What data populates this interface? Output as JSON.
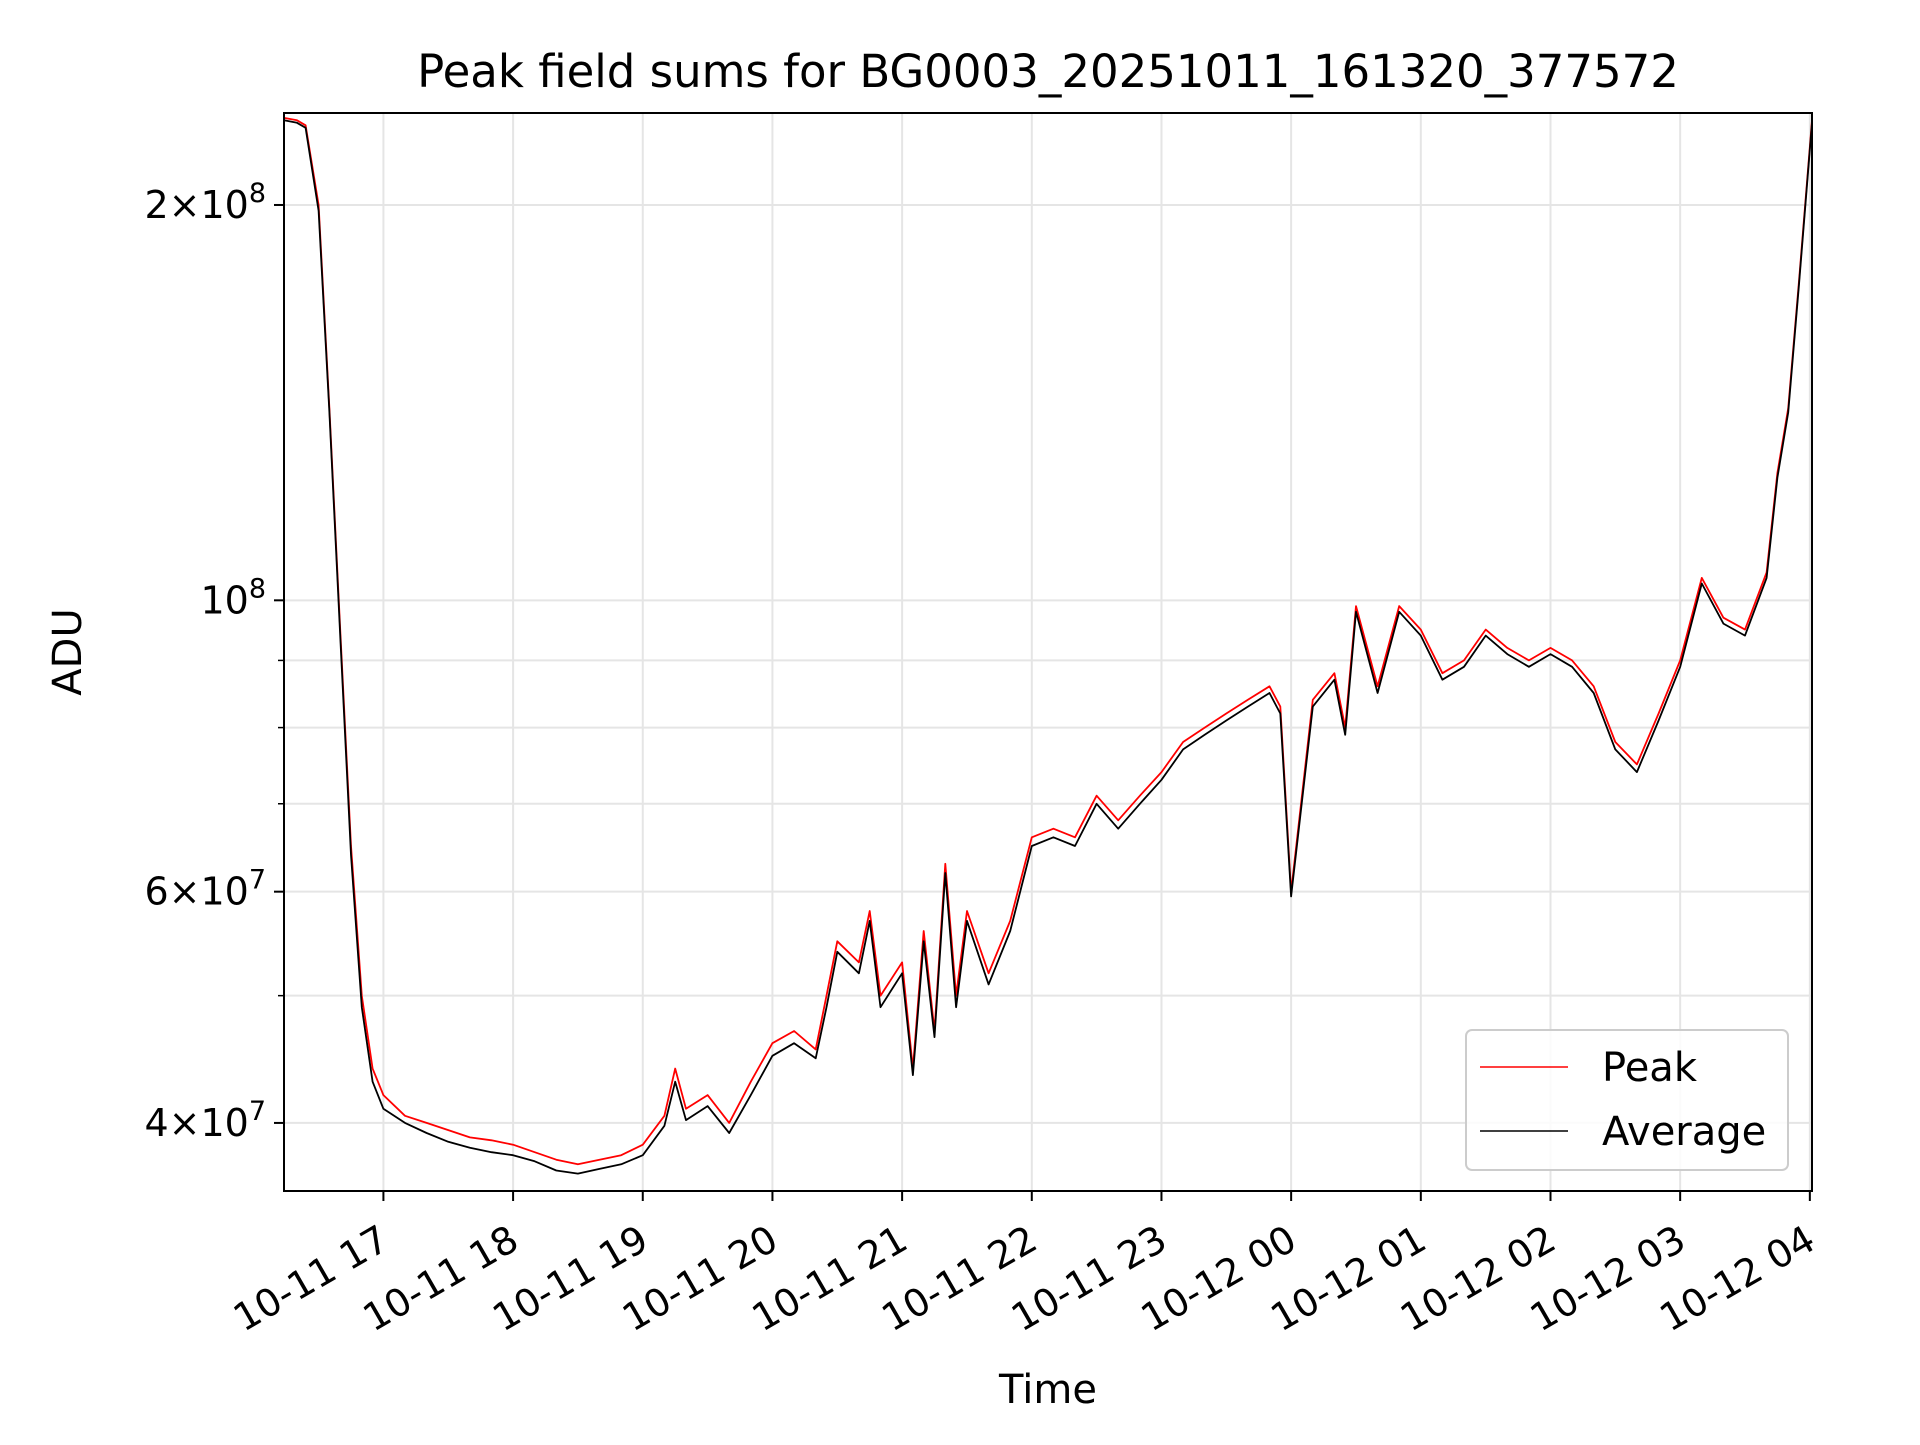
{
  "chart_data": {
    "type": "line",
    "title": "Peak field sums for BG0003_20251011_161320_377572",
    "xlabel": "Time",
    "ylabel": "ADU",
    "yscale": "log",
    "xlim": [
      "2025-10-11 16:14",
      "2025-10-12 04:01"
    ],
    "ylim": [
      35500000,
      235000000
    ],
    "x_ticks": [
      {
        "at": "2025-10-11 17:00",
        "label": "10-11 17"
      },
      {
        "at": "2025-10-11 18:00",
        "label": "10-11 18"
      },
      {
        "at": "2025-10-11 19:00",
        "label": "10-11 19"
      },
      {
        "at": "2025-10-11 20:00",
        "label": "10-11 20"
      },
      {
        "at": "2025-10-11 21:00",
        "label": "10-11 21"
      },
      {
        "at": "2025-10-11 22:00",
        "label": "10-11 22"
      },
      {
        "at": "2025-10-11 23:00",
        "label": "10-11 23"
      },
      {
        "at": "2025-10-12 00:00",
        "label": "10-12 00"
      },
      {
        "at": "2025-10-12 01:00",
        "label": "10-12 01"
      },
      {
        "at": "2025-10-12 02:00",
        "label": "10-12 02"
      },
      {
        "at": "2025-10-12 03:00",
        "label": "10-12 03"
      },
      {
        "at": "2025-10-12 04:00",
        "label": "10-12 04"
      }
    ],
    "y_major_ticks": [
      {
        "value": 40000000,
        "mantissa": "4",
        "exp": "7"
      },
      {
        "value": 60000000,
        "mantissa": "6",
        "exp": "7"
      },
      {
        "value": 100000000,
        "mantissa": "",
        "exp": "8"
      },
      {
        "value": 200000000,
        "mantissa": "2",
        "exp": "8"
      }
    ],
    "y_minor_ticks": [
      50000000,
      70000000,
      80000000,
      90000000
    ],
    "grid": true,
    "legend_position": "lower right",
    "series": [
      {
        "name": "Peak",
        "color": "#ff0000"
      },
      {
        "name": "Average",
        "color": "#000000"
      }
    ],
    "x": [
      "2025-10-11 16:14",
      "2025-10-11 16:20",
      "2025-10-11 16:24",
      "2025-10-11 16:30",
      "2025-10-11 16:35",
      "2025-10-11 16:40",
      "2025-10-11 16:45",
      "2025-10-11 16:50",
      "2025-10-11 16:55",
      "2025-10-11 17:00",
      "2025-10-11 17:10",
      "2025-10-11 17:20",
      "2025-10-11 17:30",
      "2025-10-11 17:40",
      "2025-10-11 17:50",
      "2025-10-11 18:00",
      "2025-10-11 18:10",
      "2025-10-11 18:20",
      "2025-10-11 18:30",
      "2025-10-11 18:40",
      "2025-10-11 18:50",
      "2025-10-11 19:00",
      "2025-10-11 19:10",
      "2025-10-11 19:15",
      "2025-10-11 19:20",
      "2025-10-11 19:30",
      "2025-10-11 19:40",
      "2025-10-11 19:50",
      "2025-10-11 20:00",
      "2025-10-11 20:10",
      "2025-10-11 20:20",
      "2025-10-11 20:25",
      "2025-10-11 20:30",
      "2025-10-11 20:40",
      "2025-10-11 20:45",
      "2025-10-11 20:50",
      "2025-10-11 21:00",
      "2025-10-11 21:05",
      "2025-10-11 21:10",
      "2025-10-11 21:15",
      "2025-10-11 21:20",
      "2025-10-11 21:25",
      "2025-10-11 21:30",
      "2025-10-11 21:40",
      "2025-10-11 21:50",
      "2025-10-11 22:00",
      "2025-10-11 22:10",
      "2025-10-11 22:20",
      "2025-10-11 22:30",
      "2025-10-11 22:40",
      "2025-10-11 22:50",
      "2025-10-11 23:00",
      "2025-10-11 23:10",
      "2025-10-11 23:20",
      "2025-10-11 23:30",
      "2025-10-11 23:40",
      "2025-10-11 23:50",
      "2025-10-11 23:55",
      "2025-10-12 00:00",
      "2025-10-12 00:10",
      "2025-10-12 00:20",
      "2025-10-12 00:25",
      "2025-10-12 00:30",
      "2025-10-12 00:40",
      "2025-10-12 00:50",
      "2025-10-12 01:00",
      "2025-10-12 01:10",
      "2025-10-12 01:20",
      "2025-10-12 01:30",
      "2025-10-12 01:40",
      "2025-10-12 01:50",
      "2025-10-12 02:00",
      "2025-10-12 02:10",
      "2025-10-12 02:20",
      "2025-10-12 02:30",
      "2025-10-12 02:40",
      "2025-10-12 02:50",
      "2025-10-12 03:00",
      "2025-10-12 03:10",
      "2025-10-12 03:20",
      "2025-10-12 03:30",
      "2025-10-12 03:40",
      "2025-10-12 03:45",
      "2025-10-12 03:50",
      "2025-10-12 03:55",
      "2025-10-12 04:01"
    ],
    "peak": [
      233000000,
      232000000,
      230000000,
      200000000,
      140000000,
      95000000,
      65000000,
      50000000,
      44000000,
      42000000,
      40500000,
      40000000,
      39500000,
      39000000,
      38800000,
      38500000,
      38000000,
      37500000,
      37200000,
      37500000,
      37800000,
      38500000,
      40500000,
      44000000,
      41000000,
      42000000,
      40000000,
      43000000,
      46000000,
      47000000,
      45500000,
      50000000,
      55000000,
      53000000,
      58000000,
      50000000,
      53000000,
      44000000,
      56000000,
      47000000,
      63000000,
      50000000,
      58000000,
      52000000,
      57000000,
      66000000,
      67000000,
      66000000,
      71000000,
      68000000,
      71000000,
      74000000,
      78000000,
      80000000,
      82000000,
      84000000,
      86000000,
      83000000,
      60000000,
      84000000,
      88000000,
      80000000,
      99000000,
      86000000,
      99000000,
      95000000,
      88000000,
      90000000,
      95000000,
      92000000,
      90000000,
      92000000,
      90000000,
      86000000,
      78000000,
      75000000,
      82000000,
      90000000,
      104000000,
      97000000,
      95000000,
      105000000,
      125000000,
      140000000,
      175000000,
      232000000
    ],
    "average": [
      232000000,
      231000000,
      229000000,
      198000000,
      139000000,
      94000000,
      64000000,
      49000000,
      43000000,
      41000000,
      40000000,
      39300000,
      38700000,
      38300000,
      38000000,
      37800000,
      37400000,
      36800000,
      36600000,
      36900000,
      37200000,
      37800000,
      39800000,
      43000000,
      40200000,
      41200000,
      39300000,
      42000000,
      45000000,
      46000000,
      44800000,
      49000000,
      54000000,
      52000000,
      57000000,
      49000000,
      52000000,
      43500000,
      55000000,
      46500000,
      62000000,
      49000000,
      57000000,
      51000000,
      56000000,
      65000000,
      66000000,
      65000000,
      70000000,
      67000000,
      70000000,
      73000000,
      77000000,
      79000000,
      81000000,
      83000000,
      85000000,
      82000000,
      59500000,
      83000000,
      87000000,
      79000000,
      98000000,
      85000000,
      98000000,
      94000000,
      87000000,
      89000000,
      94000000,
      91000000,
      89000000,
      91000000,
      89000000,
      85000000,
      77000000,
      74000000,
      81000000,
      89000000,
      103000000,
      96000000,
      94000000,
      104000000,
      124000000,
      139000000,
      174000000,
      231000000
    ]
  }
}
